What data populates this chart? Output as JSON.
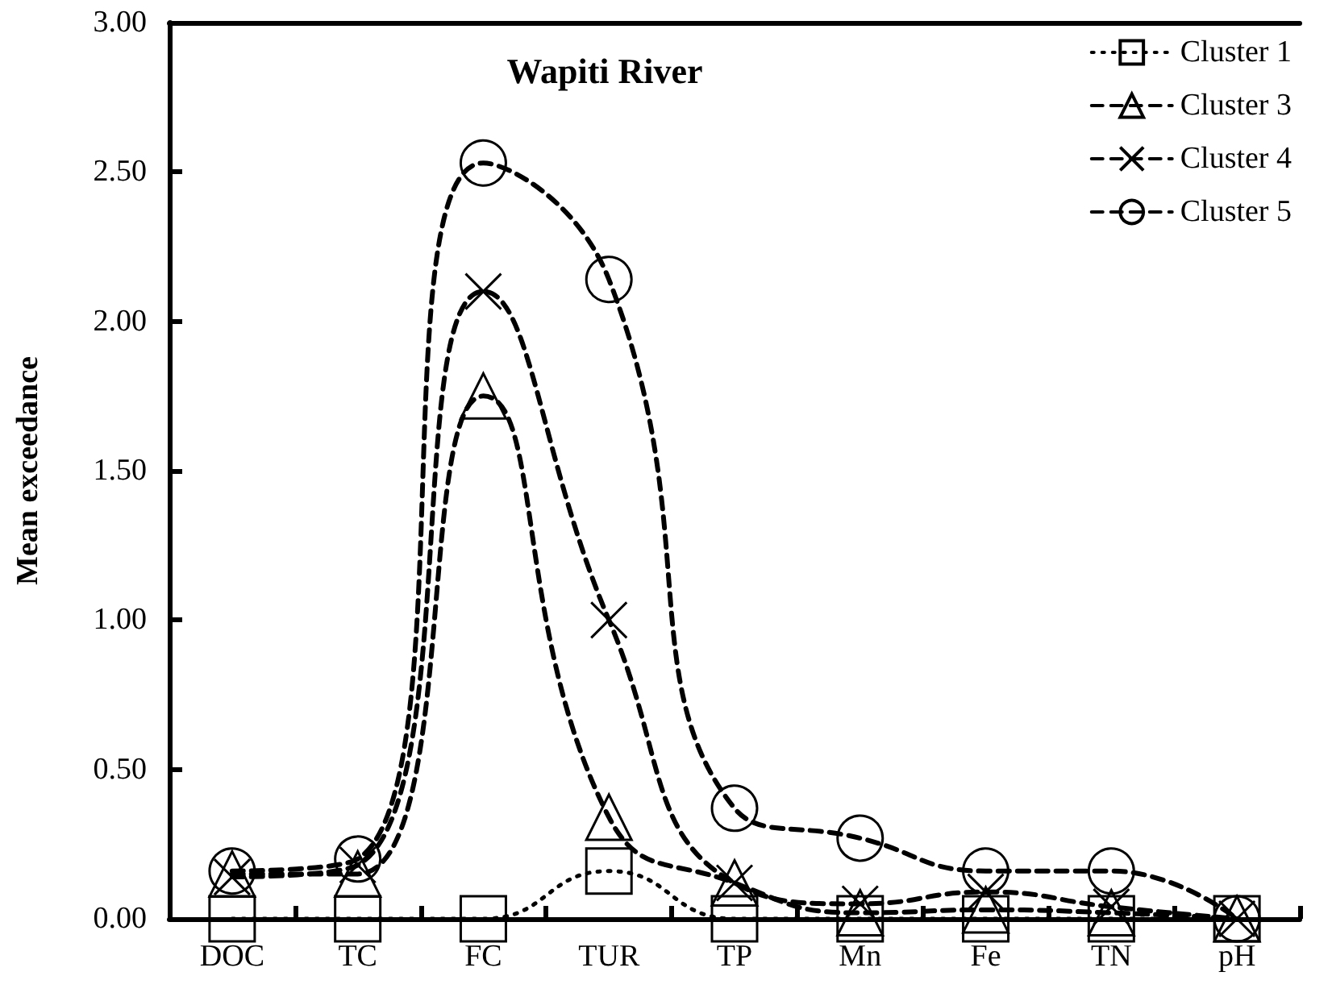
{
  "chart_data": {
    "type": "line",
    "title": "Wapiti River",
    "ylabel": "Mean exceedance",
    "categories": [
      "DOC",
      "TC",
      "FC",
      "TUR",
      "TP",
      "Mn",
      "Fe",
      "TN",
      "pH"
    ],
    "ylim": [
      0,
      3
    ],
    "yticks": [
      {
        "value": 0,
        "label": "0.00"
      },
      {
        "value": 0.5,
        "label": "0.50"
      },
      {
        "value": 1,
        "label": "1.00"
      },
      {
        "value": 1.5,
        "label": "1.50"
      },
      {
        "value": 2,
        "label": "2.00"
      },
      {
        "value": 2.5,
        "label": "2.50"
      },
      {
        "value": 3,
        "label": "3.00"
      }
    ],
    "grid": false,
    "legend": "top right",
    "series": [
      {
        "name": "Cluster 1",
        "color": "#000000",
        "marker": "square",
        "line_style": "dotted",
        "values": [
          0,
          0,
          0,
          0.16,
          0,
          0,
          0,
          0,
          0
        ]
      },
      {
        "name": "Cluster 3",
        "color": "#000000",
        "marker": "triangle",
        "line_style": "dashed",
        "values": [
          0.15,
          0.15,
          1.75,
          0.34,
          0.12,
          0.02,
          0.03,
          0.02,
          0
        ]
      },
      {
        "name": "Cluster 4",
        "color": "#000000",
        "marker": "cross",
        "line_style": "dashed",
        "values": [
          0.14,
          0.18,
          2.1,
          1.0,
          0.12,
          0.05,
          0.09,
          0.04,
          0
        ]
      },
      {
        "name": "Cluster 5",
        "color": "#000000",
        "marker": "circle",
        "line_style": "dashed",
        "values": [
          0.16,
          0.2,
          2.53,
          2.14,
          0.37,
          0.27,
          0.16,
          0.16,
          0
        ]
      }
    ]
  }
}
